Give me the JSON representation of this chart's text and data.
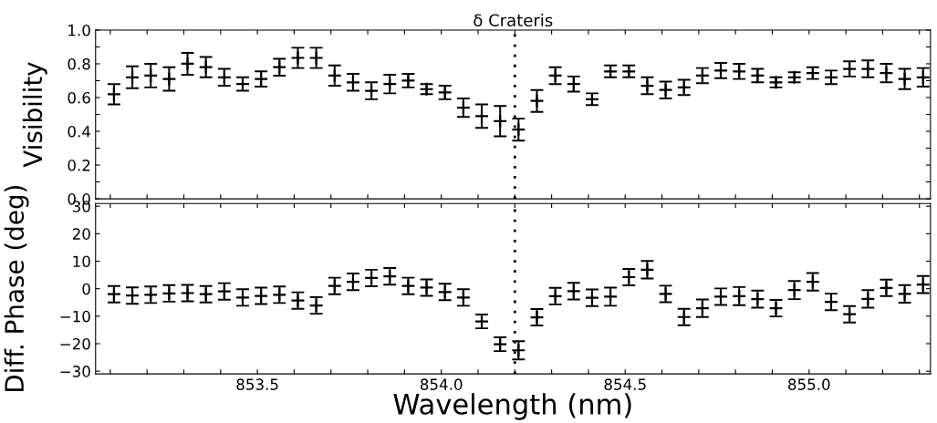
{
  "chart_data": [
    {
      "type": "scatter",
      "title": "δ Crateris",
      "ylabel": "Visibility",
      "tick_labels": "y",
      "marker": "cross",
      "grid": false,
      "legend": false,
      "series": [
        {
          "color": "#000000",
          "x": [
            853.11,
            853.16,
            853.21,
            853.26,
            853.31,
            853.36,
            853.41,
            853.46,
            853.51,
            853.56,
            853.61,
            853.66,
            853.71,
            853.76,
            853.81,
            853.86,
            853.91,
            853.96,
            854.01,
            854.06,
            854.11,
            854.16,
            854.21,
            854.26,
            854.31,
            854.36,
            854.41,
            854.46,
            854.51,
            854.56,
            854.61,
            854.66,
            854.71,
            854.76,
            854.81,
            854.86,
            854.91,
            854.96,
            855.01,
            855.06,
            855.11,
            855.16,
            855.21,
            855.26,
            855.31
          ],
          "values": [
            0.62,
            0.72,
            0.73,
            0.71,
            0.8,
            0.78,
            0.72,
            0.68,
            0.71,
            0.78,
            0.835,
            0.835,
            0.73,
            0.69,
            0.64,
            0.68,
            0.7,
            0.65,
            0.63,
            0.54,
            0.49,
            0.46,
            0.41,
            0.58,
            0.73,
            0.68,
            0.59,
            0.755,
            0.755,
            0.67,
            0.645,
            0.66,
            0.73,
            0.76,
            0.755,
            0.73,
            0.69,
            0.72,
            0.745,
            0.72,
            0.77,
            0.77,
            0.745,
            0.71,
            0.72
          ],
          "errors": [
            0.06,
            0.065,
            0.07,
            0.07,
            0.065,
            0.06,
            0.05,
            0.04,
            0.045,
            0.05,
            0.06,
            0.06,
            0.06,
            0.05,
            0.05,
            0.055,
            0.04,
            0.03,
            0.04,
            0.055,
            0.07,
            0.09,
            0.065,
            0.065,
            0.05,
            0.045,
            0.035,
            0.035,
            0.035,
            0.05,
            0.05,
            0.045,
            0.045,
            0.045,
            0.045,
            0.04,
            0.03,
            0.03,
            0.035,
            0.04,
            0.045,
            0.05,
            0.055,
            0.06,
            0.055
          ]
        }
      ],
      "xlim": [
        853.06,
        855.33
      ],
      "xticks": [
        {
          "value": 853.1,
          "label": null
        },
        {
          "value": 853.2,
          "label": null
        },
        {
          "value": 853.3,
          "label": null
        },
        {
          "value": 853.4,
          "label": null
        },
        {
          "value": 853.5,
          "label": null
        },
        {
          "value": 853.6,
          "label": null
        },
        {
          "value": 853.7,
          "label": null
        },
        {
          "value": 853.8,
          "label": null
        },
        {
          "value": 853.9,
          "label": null
        },
        {
          "value": 854.0,
          "label": null
        },
        {
          "value": 854.1,
          "label": null
        },
        {
          "value": 854.2,
          "label": null
        },
        {
          "value": 854.3,
          "label": null
        },
        {
          "value": 854.4,
          "label": null
        },
        {
          "value": 854.5,
          "label": null
        },
        {
          "value": 854.6,
          "label": null
        },
        {
          "value": 854.7,
          "label": null
        },
        {
          "value": 854.8,
          "label": null
        },
        {
          "value": 854.9,
          "label": null
        },
        {
          "value": 855.0,
          "label": null
        },
        {
          "value": 855.1,
          "label": null
        },
        {
          "value": 855.2,
          "label": null
        },
        {
          "value": 855.3,
          "label": null
        }
      ],
      "ylim": [
        0.0,
        1.0
      ],
      "yticks": [
        {
          "value": 0.0,
          "label": "0.0"
        },
        {
          "value": 0.1,
          "label": null
        },
        {
          "value": 0.2,
          "label": "0.2"
        },
        {
          "value": 0.3,
          "label": null
        },
        {
          "value": 0.4,
          "label": "0.4"
        },
        {
          "value": 0.5,
          "label": null
        },
        {
          "value": 0.6,
          "label": "0.6"
        },
        {
          "value": 0.7,
          "label": null
        },
        {
          "value": 0.8,
          "label": "0.8"
        },
        {
          "value": 0.9,
          "label": null
        },
        {
          "value": 1.0,
          "label": "1.0"
        }
      ],
      "ref_lines": [
        {
          "axis": "x",
          "value": 854.2,
          "color": "#000000",
          "line_style": "dotted"
        }
      ]
    },
    {
      "type": "scatter",
      "xlabel": "Wavelength (nm)",
      "ylabel": "Diff. Phase (deg)",
      "marker": "cross",
      "grid": false,
      "legend": false,
      "series": [
        {
          "color": "#000000",
          "x": [
            853.11,
            853.16,
            853.21,
            853.26,
            853.31,
            853.36,
            853.41,
            853.46,
            853.51,
            853.56,
            853.61,
            853.66,
            853.71,
            853.76,
            853.81,
            853.86,
            853.91,
            853.96,
            854.01,
            854.06,
            854.11,
            854.16,
            854.21,
            854.26,
            854.31,
            854.36,
            854.41,
            854.46,
            854.51,
            854.56,
            854.61,
            854.66,
            854.71,
            854.76,
            854.81,
            854.86,
            854.91,
            854.96,
            855.01,
            855.06,
            855.11,
            855.16,
            855.21,
            855.26,
            855.31
          ],
          "values": [
            -2.0,
            -2.5,
            -2.2,
            -1.7,
            -1.6,
            -2.0,
            -1.0,
            -3.2,
            -2.6,
            -2.2,
            -4.3,
            -6.1,
            1.0,
            2.5,
            3.9,
            4.5,
            1.0,
            0.4,
            -1.2,
            -3.2,
            -11.9,
            -20.2,
            -22.4,
            -10.4,
            -2.7,
            -0.9,
            -3.3,
            -2.9,
            4.2,
            6.9,
            -1.9,
            -10.3,
            -7.1,
            -2.9,
            -2.7,
            -3.8,
            -7.1,
            -0.5,
            2.5,
            -4.8,
            -9.3,
            -3.7,
            0.3,
            -1.9,
            1.5
          ],
          "errors": [
            3,
            3,
            3,
            3,
            3,
            3,
            3,
            3,
            3,
            3,
            3,
            3,
            3,
            3,
            3,
            3,
            3,
            3,
            3,
            3,
            2.5,
            2.5,
            3.3,
            3,
            3,
            3,
            3,
            3.3,
            3,
            3.2,
            3,
            3,
            3.2,
            3,
            3.3,
            3.1,
            3,
            3.3,
            3.2,
            3,
            3,
            3.2,
            3,
            3.2,
            3.1
          ]
        }
      ],
      "xlim": [
        853.06,
        855.33
      ],
      "xticks": [
        {
          "value": 853.1,
          "label": null
        },
        {
          "value": 853.2,
          "label": null
        },
        {
          "value": 853.3,
          "label": null
        },
        {
          "value": 853.4,
          "label": null
        },
        {
          "value": 853.5,
          "label": "853.5"
        },
        {
          "value": 853.6,
          "label": null
        },
        {
          "value": 853.7,
          "label": null
        },
        {
          "value": 853.8,
          "label": null
        },
        {
          "value": 853.9,
          "label": null
        },
        {
          "value": 854.0,
          "label": "854.0"
        },
        {
          "value": 854.1,
          "label": null
        },
        {
          "value": 854.2,
          "label": null
        },
        {
          "value": 854.3,
          "label": null
        },
        {
          "value": 854.4,
          "label": null
        },
        {
          "value": 854.5,
          "label": "854.5"
        },
        {
          "value": 854.6,
          "label": null
        },
        {
          "value": 854.7,
          "label": null
        },
        {
          "value": 854.8,
          "label": null
        },
        {
          "value": 854.9,
          "label": null
        },
        {
          "value": 855.0,
          "label": "855.0"
        },
        {
          "value": 855.1,
          "label": null
        },
        {
          "value": 855.2,
          "label": null
        },
        {
          "value": 855.3,
          "label": null
        }
      ],
      "ylim": [
        -31,
        31
      ],
      "yticks": [
        {
          "value": -30,
          "label": "−30"
        },
        {
          "value": -20,
          "label": "−20"
        },
        {
          "value": -10,
          "label": "−10"
        },
        {
          "value": 0,
          "label": "0"
        },
        {
          "value": 10,
          "label": "10"
        },
        {
          "value": 20,
          "label": "20"
        },
        {
          "value": 30,
          "label": "30"
        }
      ],
      "ref_lines": [
        {
          "axis": "x",
          "value": 854.2,
          "color": "#000000",
          "line_style": "dotted"
        }
      ]
    }
  ]
}
